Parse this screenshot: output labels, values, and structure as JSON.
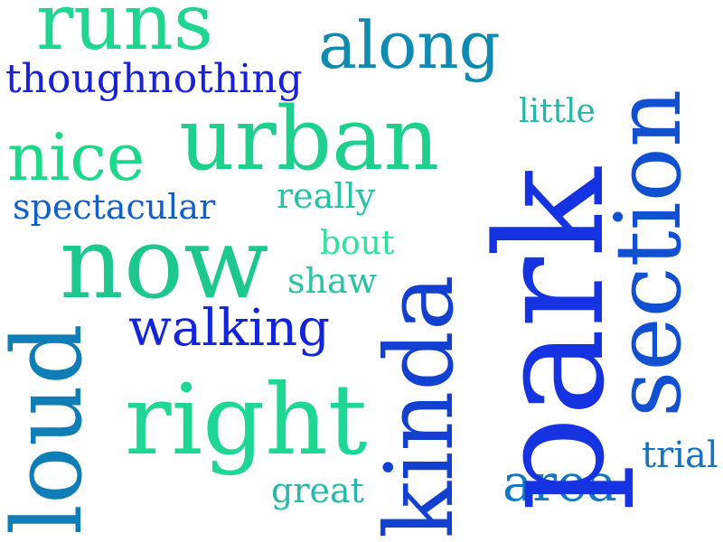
{
  "words": [
    {
      "text": "runs",
      "color": "#1ED690"
    },
    {
      "text": "along",
      "color": "#0F8AB0"
    },
    {
      "text": "thoughnothing",
      "color": "#1A22D6"
    },
    {
      "text": "little",
      "color": "#23B7A6"
    },
    {
      "text": "nice",
      "color": "#1CD98A"
    },
    {
      "text": "urban",
      "color": "#1ECF8E"
    },
    {
      "text": "spectacular",
      "color": "#1160C8"
    },
    {
      "text": "really",
      "color": "#25C4A6"
    },
    {
      "text": "bout",
      "color": "#2DE39A"
    },
    {
      "text": "now",
      "color": "#1CC88E"
    },
    {
      "text": "shaw",
      "color": "#2AC3A0"
    },
    {
      "text": "walking",
      "color": "#1225D8"
    },
    {
      "text": "loud",
      "color": "#0F7EB6"
    },
    {
      "text": "right",
      "color": "#1ED795"
    },
    {
      "text": "great",
      "color": "#24B9A8"
    },
    {
      "text": "kinda",
      "color": "#1240CF"
    },
    {
      "text": "park",
      "color": "#1533E0"
    },
    {
      "text": "section",
      "color": "#1250D2"
    },
    {
      "text": "area",
      "color": "#1278C4"
    },
    {
      "text": "trial",
      "color": "#1772BF"
    }
  ]
}
